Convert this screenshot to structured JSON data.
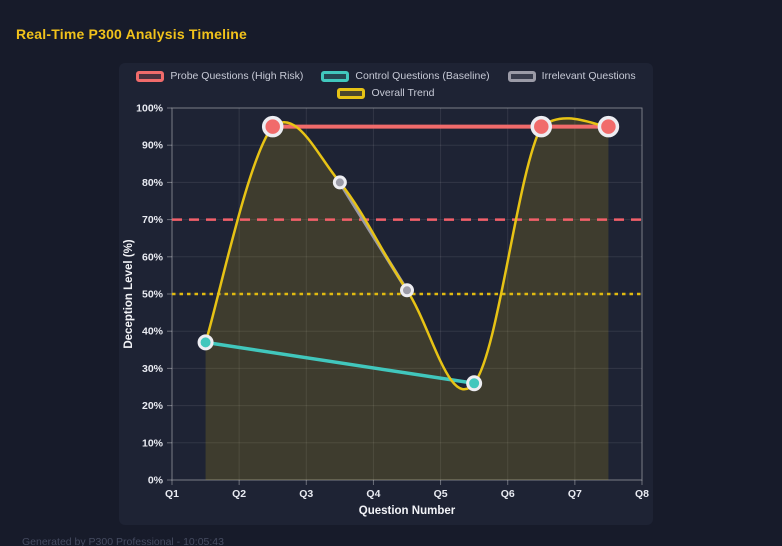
{
  "page": {
    "footer": "Generated by P300 Professional - 10:05:43"
  },
  "chart_data": {
    "type": "line",
    "title": "Real-Time P300 Analysis Timeline",
    "xlabel": "Question Number",
    "ylabel": "Deception Level (%)",
    "x_ticks": [
      "Q1",
      "Q2",
      "Q3",
      "Q4",
      "Q5",
      "Q6",
      "Q7",
      "Q8"
    ],
    "x_range": [
      1,
      8
    ],
    "y_ticks": [
      "0%",
      "10%",
      "20%",
      "30%",
      "40%",
      "50%",
      "60%",
      "70%",
      "80%",
      "90%",
      "100%"
    ],
    "y_range": [
      0,
      100
    ],
    "y_tick_step": 10,
    "grid": true,
    "legend_position": "top",
    "point_border_color": "#ededf2",
    "series": [
      {
        "name": "Probe Questions (High Risk)",
        "color": "#f16b6b",
        "line_width": 4,
        "point_radius": 9,
        "smooth": false,
        "points": [
          [
            2.5,
            95
          ],
          [
            6.5,
            95
          ],
          [
            7.5,
            95
          ]
        ]
      },
      {
        "name": "Control Questions (Baseline)",
        "color": "#41c7bd",
        "line_width": 3.5,
        "point_radius": 6.5,
        "smooth": false,
        "points": [
          [
            1.5,
            37
          ],
          [
            5.5,
            26
          ]
        ]
      },
      {
        "name": "Irrelevant Questions",
        "color": "#9b9ba7",
        "line_width": 3.5,
        "point_radius": 5.5,
        "smooth": false,
        "points": [
          [
            3.5,
            80
          ],
          [
            4.5,
            51
          ]
        ]
      },
      {
        "name": "Overall Trend",
        "color": "#e7c315",
        "line_width": 2.5,
        "point_radius": 0,
        "smooth": true,
        "fill": "rgba(231,195,21,0.16)",
        "points": [
          [
            1.5,
            37
          ],
          [
            2.5,
            95
          ],
          [
            3.5,
            80
          ],
          [
            4.5,
            51
          ],
          [
            5.5,
            26
          ],
          [
            6.5,
            95
          ],
          [
            7.5,
            95
          ]
        ]
      }
    ],
    "threshold_lines": [
      {
        "value": 70,
        "color": "#f2606a",
        "style": "dashed"
      },
      {
        "value": 50,
        "color": "#e0ba10",
        "style": "dotted"
      }
    ],
    "legend_rows": [
      [
        0,
        1,
        2
      ],
      [
        3
      ]
    ]
  }
}
